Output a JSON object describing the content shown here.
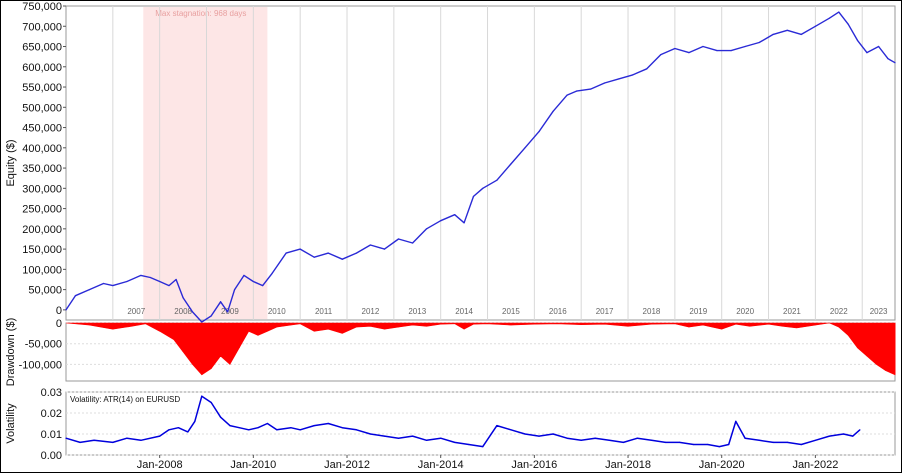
{
  "chart_data": [
    {
      "type": "line",
      "ylabel": "Equity ($)",
      "ylim": [
        -25000,
        750000
      ],
      "yticks": [
        "750,000",
        "700,000",
        "650,000",
        "600,000",
        "550,000",
        "500,000",
        "450,000",
        "400,000",
        "350,000",
        "300,000",
        "250,000",
        "200,000",
        "150,000",
        "100,000",
        "50,000",
        "0"
      ],
      "year_labels": [
        "2007",
        "2008",
        "2009",
        "2010",
        "2011",
        "2012",
        "2013",
        "2014",
        "2015",
        "2016",
        "2017",
        "2018",
        "2019",
        "2020",
        "2021",
        "2022",
        "2023"
      ],
      "annotation": "Max stagnation: 968 days",
      "highlight_x": [
        2007.65,
        2010.3
      ],
      "series": [
        {
          "color": "#2a2ad6",
          "x": [
            2006.0,
            2006.2,
            2006.5,
            2006.8,
            2007.0,
            2007.3,
            2007.6,
            2007.8,
            2008.0,
            2008.2,
            2008.35,
            2008.5,
            2008.7,
            2008.9,
            2009.1,
            2009.3,
            2009.45,
            2009.6,
            2009.8,
            2010.0,
            2010.2,
            2010.4,
            2010.7,
            2011.0,
            2011.3,
            2011.6,
            2011.9,
            2012.2,
            2012.5,
            2012.8,
            2013.1,
            2013.4,
            2013.7,
            2014.0,
            2014.3,
            2014.5,
            2014.7,
            2014.9,
            2015.2,
            2015.5,
            2015.8,
            2016.1,
            2016.4,
            2016.7,
            2016.9,
            2017.2,
            2017.5,
            2017.8,
            2018.1,
            2018.4,
            2018.7,
            2019.0,
            2019.3,
            2019.6,
            2019.9,
            2020.2,
            2020.5,
            2020.8,
            2021.1,
            2021.4,
            2021.7,
            2022.0,
            2022.3,
            2022.5,
            2022.7,
            2022.9,
            2023.1,
            2023.35,
            2023.55,
            2023.7
          ],
          "values": [
            0,
            35000,
            50000,
            65000,
            60000,
            70000,
            85000,
            80000,
            70000,
            60000,
            75000,
            30000,
            -5000,
            -30000,
            -15000,
            20000,
            -5000,
            50000,
            85000,
            70000,
            60000,
            90000,
            140000,
            150000,
            130000,
            140000,
            125000,
            140000,
            160000,
            150000,
            175000,
            165000,
            200000,
            220000,
            235000,
            215000,
            280000,
            300000,
            320000,
            360000,
            400000,
            440000,
            490000,
            530000,
            540000,
            545000,
            560000,
            570000,
            580000,
            595000,
            630000,
            645000,
            635000,
            650000,
            640000,
            640000,
            650000,
            660000,
            680000,
            690000,
            680000,
            700000,
            720000,
            735000,
            705000,
            665000,
            635000,
            650000,
            620000,
            610000
          ]
        }
      ]
    },
    {
      "type": "area",
      "ylabel": "Drawdown ($)",
      "ylim": [
        -140000,
        0
      ],
      "yticks": [
        "0",
        "-50,000",
        "-100,000"
      ],
      "series": [
        {
          "color": "#ff0000",
          "x": [
            2006.0,
            2006.5,
            2007.0,
            2007.4,
            2007.7,
            2008.0,
            2008.3,
            2008.5,
            2008.7,
            2008.9,
            2009.1,
            2009.3,
            2009.5,
            2009.7,
            2009.9,
            2010.1,
            2010.3,
            2010.5,
            2010.8,
            2011.0,
            2011.3,
            2011.6,
            2011.9,
            2012.2,
            2012.5,
            2012.8,
            2013.1,
            2013.4,
            2013.7,
            2014.0,
            2014.3,
            2014.5,
            2014.7,
            2015.0,
            2015.5,
            2016.0,
            2016.5,
            2017.0,
            2017.5,
            2018.0,
            2018.5,
            2019.0,
            2019.3,
            2019.6,
            2020.0,
            2020.3,
            2020.6,
            2021.0,
            2021.3,
            2021.6,
            2022.0,
            2022.3,
            2022.5,
            2022.7,
            2022.9,
            2023.1,
            2023.3,
            2023.5,
            2023.7
          ],
          "values": [
            0,
            -5000,
            -15000,
            -8000,
            -2000,
            -20000,
            -40000,
            -70000,
            -100000,
            -125000,
            -110000,
            -80000,
            -100000,
            -60000,
            -20000,
            -30000,
            -20000,
            -10000,
            -5000,
            -2000,
            -20000,
            -15000,
            -25000,
            -10000,
            -8000,
            -15000,
            -10000,
            -5000,
            -8000,
            -3000,
            -2000,
            -15000,
            -3000,
            -2000,
            -5000,
            -3000,
            -2000,
            -4000,
            -3000,
            -8000,
            -3000,
            -2000,
            -10000,
            -5000,
            -15000,
            -3000,
            -8000,
            -3000,
            -8000,
            -12000,
            -5000,
            0,
            -10000,
            -30000,
            -60000,
            -80000,
            -100000,
            -115000,
            -125000
          ]
        }
      ]
    },
    {
      "type": "line",
      "ylabel": "Volatility",
      "title": "Volatility: ATR(14) on EURUSD",
      "ylim": [
        0,
        0.03
      ],
      "yticks": [
        "0.03",
        "0.02",
        "0.01",
        "0.00"
      ],
      "xticks": [
        "Jan-2008",
        "Jan-2010",
        "Jan-2012",
        "Jan-2014",
        "Jan-2016",
        "Jan-2018",
        "Jan-2020",
        "Jan-2022"
      ],
      "series": [
        {
          "color": "#0000dd",
          "x": [
            2006.0,
            2006.3,
            2006.6,
            2007.0,
            2007.3,
            2007.6,
            2008.0,
            2008.2,
            2008.4,
            2008.6,
            2008.75,
            2008.9,
            2009.1,
            2009.3,
            2009.5,
            2009.7,
            2009.9,
            2010.1,
            2010.3,
            2010.5,
            2010.8,
            2011.0,
            2011.3,
            2011.6,
            2011.9,
            2012.2,
            2012.5,
            2012.8,
            2013.1,
            2013.4,
            2013.7,
            2014.0,
            2014.3,
            2014.6,
            2014.9,
            2015.2,
            2015.5,
            2015.8,
            2016.1,
            2016.4,
            2016.7,
            2017.0,
            2017.3,
            2017.6,
            2017.9,
            2018.2,
            2018.5,
            2018.8,
            2019.1,
            2019.4,
            2019.7,
            2019.95,
            2020.15,
            2020.3,
            2020.5,
            2020.8,
            2021.1,
            2021.4,
            2021.7,
            2022.0,
            2022.3,
            2022.6,
            2022.8,
            2022.95
          ],
          "values": [
            0.008,
            0.006,
            0.007,
            0.006,
            0.008,
            0.007,
            0.009,
            0.012,
            0.013,
            0.011,
            0.016,
            0.028,
            0.025,
            0.018,
            0.014,
            0.013,
            0.012,
            0.013,
            0.015,
            0.012,
            0.013,
            0.012,
            0.014,
            0.015,
            0.013,
            0.012,
            0.01,
            0.009,
            0.008,
            0.009,
            0.007,
            0.008,
            0.006,
            0.005,
            0.004,
            0.014,
            0.012,
            0.01,
            0.009,
            0.01,
            0.008,
            0.007,
            0.008,
            0.007,
            0.006,
            0.008,
            0.007,
            0.006,
            0.006,
            0.005,
            0.005,
            0.004,
            0.005,
            0.016,
            0.008,
            0.007,
            0.006,
            0.006,
            0.005,
            0.007,
            0.009,
            0.01,
            0.009,
            0.012
          ]
        }
      ]
    }
  ]
}
